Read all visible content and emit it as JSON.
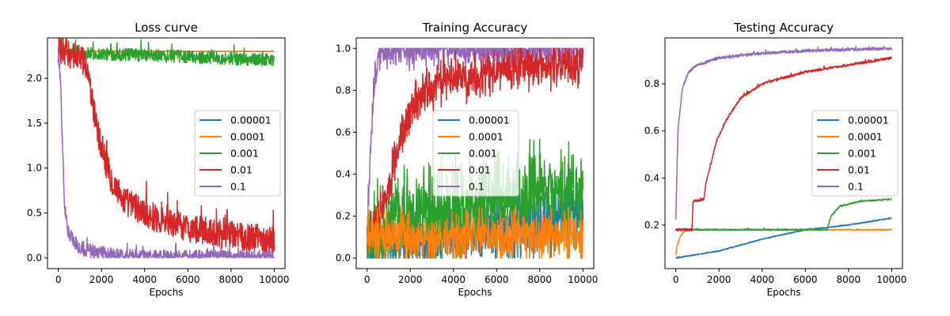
{
  "colors": {
    "0.00001": "#1f77b4",
    "0.0001": "#ff7f0e",
    "0.001": "#2ca02c",
    "0.01": "#d62728",
    "0.1": "#9467bd"
  },
  "chart_data": [
    {
      "type": "line",
      "title": "Loss curve",
      "xlabel": "Epochs",
      "ylabel": "",
      "xlim": [
        -500,
        10500
      ],
      "ylim": [
        -0.12,
        2.45
      ],
      "xticks": [
        0,
        2000,
        4000,
        6000,
        8000,
        10000
      ],
      "yticks": [
        0.0,
        0.5,
        1.0,
        1.5,
        2.0
      ],
      "yticklabels": [
        "0.0",
        "0.5",
        "1.0",
        "1.5",
        "2.0"
      ],
      "legend_position": "center-right",
      "noise_style": "additive",
      "draw_order": [
        "0.00001",
        "0.0001",
        "0.001",
        "0.01",
        "0.1"
      ],
      "series": [
        {
          "name": "0.00001",
          "x": [
            0,
            10000
          ],
          "y": [
            2.3,
            2.3
          ],
          "noise": 0
        },
        {
          "name": "0.0001",
          "x": [
            0,
            10000
          ],
          "y": [
            2.3,
            2.3
          ],
          "noise": 0
        },
        {
          "name": "0.001",
          "x": [
            0,
            200,
            2000,
            5000,
            8000,
            10000
          ],
          "y": [
            2.32,
            2.28,
            2.27,
            2.25,
            2.22,
            2.2
          ],
          "noise": 0.07
        },
        {
          "name": "0.01",
          "x": [
            0,
            1000,
            1300,
            2000,
            2500,
            3000,
            4000,
            5000,
            6000,
            8000,
            10000
          ],
          "y": [
            2.3,
            2.25,
            2.1,
            1.2,
            0.85,
            0.65,
            0.5,
            0.4,
            0.33,
            0.25,
            0.2
          ],
          "noise": 0.16
        },
        {
          "name": "0.1",
          "x": [
            0,
            100,
            200,
            300,
            500,
            1000,
            2000,
            3000,
            5000,
            10000
          ],
          "y": [
            2.3,
            2.0,
            1.2,
            0.5,
            0.25,
            0.1,
            0.05,
            0.02,
            0.01,
            0.005
          ],
          "noise": 0.08
        }
      ]
    },
    {
      "type": "line",
      "title": "Training Accuracy",
      "xlabel": "Epochs",
      "ylabel": "",
      "xlim": [
        -500,
        10500
      ],
      "ylim": [
        -0.05,
        1.05
      ],
      "xticks": [
        0,
        2000,
        4000,
        6000,
        8000,
        10000
      ],
      "yticks": [
        0.0,
        0.2,
        0.4,
        0.6,
        0.8,
        1.0
      ],
      "yticklabels": [
        "0.0",
        "0.2",
        "0.4",
        "0.6",
        "0.8",
        "1.0"
      ],
      "legend_position": "center",
      "noise_style": "accuracy",
      "draw_order": [
        "0.00001",
        "0.1",
        "0.001",
        "0.01",
        "0.0001"
      ],
      "series": [
        {
          "name": "0.00001",
          "x": [
            0,
            2000,
            7000,
            10000
          ],
          "y": [
            0.05,
            0.1,
            0.15,
            0.22
          ],
          "noise": 0.1
        },
        {
          "name": "0.0001",
          "x": [
            0,
            1000,
            5000,
            7500,
            8000,
            10000
          ],
          "y": [
            0.1,
            0.1,
            0.1,
            0.1,
            0.1,
            0.12
          ],
          "noise": 0.08
        },
        {
          "name": "0.001",
          "x": [
            0,
            2000,
            5000,
            7000,
            10000
          ],
          "y": [
            0.1,
            0.2,
            0.25,
            0.3,
            0.3
          ],
          "noise": 0.14
        },
        {
          "name": "0.01",
          "x": [
            0,
            500,
            1000,
            1500,
            2000,
            2500,
            3000,
            4000,
            6000,
            8000,
            10000
          ],
          "y": [
            0.1,
            0.2,
            0.35,
            0.55,
            0.7,
            0.78,
            0.82,
            0.86,
            0.89,
            0.92,
            0.93
          ],
          "noise": 0.07
        },
        {
          "name": "0.1",
          "x": [
            0,
            200,
            400,
            600,
            1000,
            2000,
            10000
          ],
          "y": [
            0.1,
            0.6,
            0.9,
            0.97,
            0.99,
            1.0,
            1.0
          ],
          "noise": 0.06
        }
      ]
    },
    {
      "type": "line",
      "title": "Testing Accuracy",
      "xlabel": "Epochs",
      "ylabel": "",
      "xlim": [
        -500,
        10500
      ],
      "ylim": [
        0.015,
        0.995
      ],
      "xticks": [
        0,
        2000,
        4000,
        6000,
        8000,
        10000
      ],
      "yticks": [
        0.2,
        0.4,
        0.6,
        0.8
      ],
      "yticklabels": [
        "0.2",
        "0.4",
        "0.6",
        "0.8"
      ],
      "legend_position": "center-right",
      "noise_style": "additive",
      "draw_order": [
        "0.00001",
        "0.0001",
        "0.001",
        "0.01",
        "0.1"
      ],
      "series": [
        {
          "name": "0.00001",
          "x": [
            0,
            2000,
            4000,
            6000,
            8000,
            10000
          ],
          "y": [
            0.06,
            0.09,
            0.14,
            0.18,
            0.2,
            0.23
          ],
          "noise": 0.002
        },
        {
          "name": "0.0001",
          "x": [
            0,
            80,
            250,
            500,
            10000
          ],
          "y": [
            0.07,
            0.12,
            0.16,
            0.18,
            0.18
          ],
          "noise": 0.002
        },
        {
          "name": "0.001",
          "x": [
            0,
            7000,
            7200,
            7600,
            8500,
            10000
          ],
          "y": [
            0.18,
            0.18,
            0.24,
            0.28,
            0.3,
            0.31
          ],
          "noise": 0.003
        },
        {
          "name": "0.01",
          "x": [
            0,
            750,
            800,
            1300,
            1400,
            1900,
            2300,
            3000,
            4000,
            6000,
            8000,
            10000
          ],
          "y": [
            0.18,
            0.18,
            0.3,
            0.31,
            0.38,
            0.56,
            0.64,
            0.74,
            0.8,
            0.85,
            0.88,
            0.91
          ],
          "noise": 0.005
        },
        {
          "name": "0.1",
          "x": [
            0,
            100,
            300,
            600,
            1000,
            2000,
            4000,
            6000,
            8000,
            10000
          ],
          "y": [
            0.22,
            0.6,
            0.78,
            0.85,
            0.88,
            0.91,
            0.93,
            0.94,
            0.945,
            0.95
          ],
          "noise": 0.006
        }
      ]
    }
  ]
}
